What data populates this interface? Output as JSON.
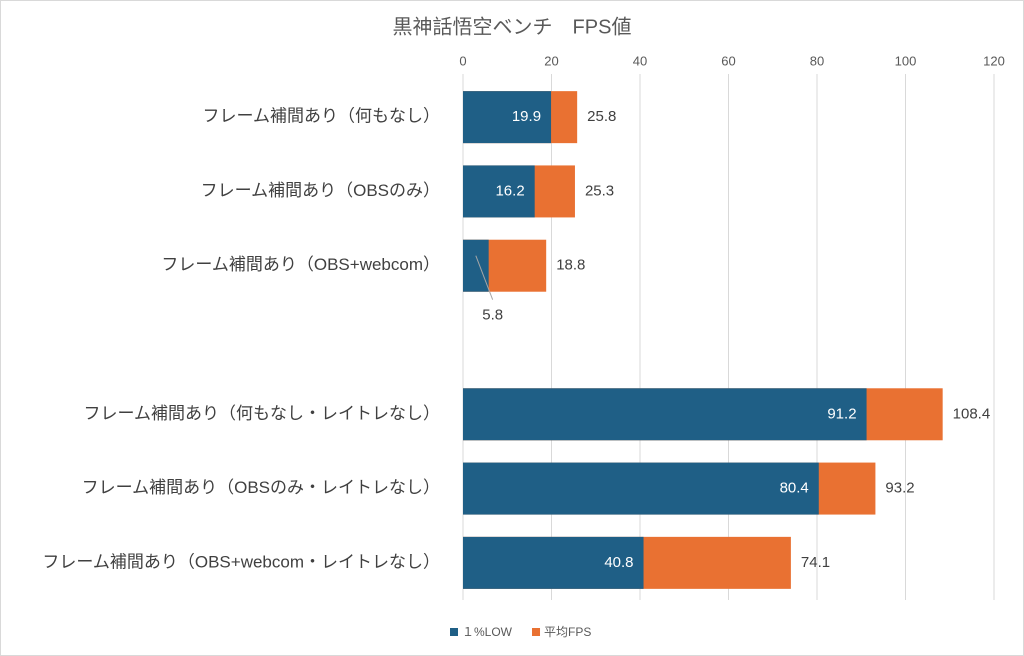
{
  "chart_data": {
    "type": "bar",
    "orientation": "horizontal",
    "title": "黒神話悟空ベンチ　FPS値",
    "categories": [
      "フレーム補間あり（何もなし）",
      "フレーム補間あり（OBSのみ）",
      "フレーム補間あり（OBS+webcom）",
      null,
      "フレーム補間あり（何もなし・レイトレなし）",
      "フレーム補間あり（OBSのみ・レイトレなし）",
      "フレーム補間あり（OBS+webcom・レイトレなし）"
    ],
    "series": [
      {
        "name": "１%LOW",
        "color": "#1f5f86",
        "values": [
          19.9,
          16.2,
          5.8,
          null,
          91.2,
          80.4,
          40.8
        ]
      },
      {
        "name": "平均FPS",
        "color": "#e97132",
        "values": [
          25.8,
          25.3,
          18.8,
          null,
          108.4,
          93.2,
          74.1
        ]
      }
    ],
    "xlim": [
      0,
      120
    ],
    "xticks": [
      0,
      20,
      40,
      60,
      80,
      100,
      120
    ],
    "grid": true,
    "legend": "bottom"
  }
}
